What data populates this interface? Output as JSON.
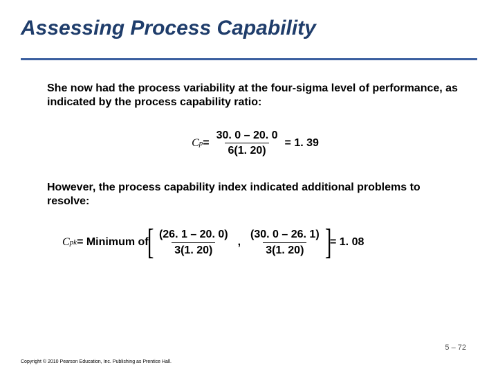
{
  "title": "Assessing Process Capability",
  "para1": "She now had the process variability at the four-sigma level of performance, as indicated by the process capability ratio:",
  "eq1": {
    "lhs_sym": "C",
    "lhs_sub": "p",
    "eq": " = ",
    "num": "30. 0 – 20. 0",
    "den": "6(1. 20)",
    "rhs": " = 1. 39"
  },
  "para2": "However, the process capability index indicated additional problems to resolve:",
  "eq2": {
    "lhs_sym": "C",
    "lhs_sub": "pk",
    "eq": " = Minimum of ",
    "f1_num": "(26. 1 – 20. 0)",
    "f1_den": "3(1. 20)",
    "comma": ",",
    "f2_num": "(30. 0 – 26. 1)",
    "f2_den": "3(1. 20)",
    "rhs": " = 1. 08"
  },
  "pagenum": "5 – 72",
  "copyright": "Copyright © 2010 Pearson Education, Inc. Publishing as Prentice Hall.",
  "colors": {
    "title": "#1f3d6b",
    "rule": "#3b5fa0",
    "bg": "#ffffff"
  }
}
